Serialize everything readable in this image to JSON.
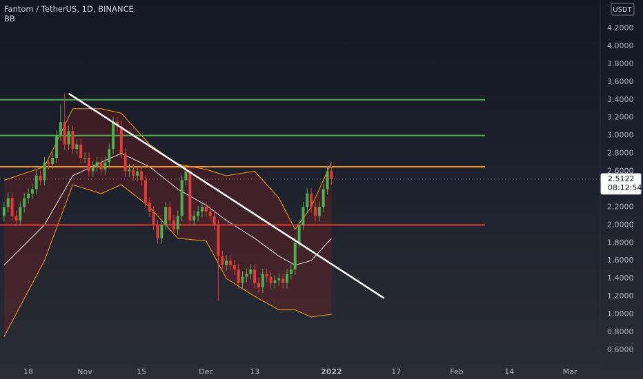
{
  "chart_data": {
    "type": "candlestick",
    "title": "Fantom / TetherUS, 1D, BINANCE",
    "indicator_label": "BB",
    "currency": "USDT",
    "countdown": "08:12:54",
    "up_color": "#4caf50",
    "down_color": "#e53935",
    "x": [
      "2021-10-12",
      "2021-10-13",
      "2021-10-14",
      "2021-10-15",
      "2021-10-16",
      "2021-10-17",
      "2021-10-18",
      "2021-10-19",
      "2021-10-20",
      "2021-10-21",
      "2021-10-22",
      "2021-10-23",
      "2021-10-24",
      "2021-10-25",
      "2021-10-26",
      "2021-10-27",
      "2021-10-28",
      "2021-10-29",
      "2021-10-30",
      "2021-10-31",
      "2021-11-01",
      "2021-11-02",
      "2021-11-03",
      "2021-11-04",
      "2021-11-05",
      "2021-11-06",
      "2021-11-07",
      "2021-11-08",
      "2021-11-09",
      "2021-11-10",
      "2021-11-11",
      "2021-11-12",
      "2021-11-13",
      "2021-11-14",
      "2021-11-15",
      "2021-11-16",
      "2021-11-17",
      "2021-11-18",
      "2021-11-19",
      "2021-11-20",
      "2021-11-21",
      "2021-11-22",
      "2021-11-23",
      "2021-11-24",
      "2021-11-25",
      "2021-11-26",
      "2021-11-27",
      "2021-11-28",
      "2021-11-29",
      "2021-11-30",
      "2021-12-01",
      "2021-12-02",
      "2021-12-03",
      "2021-12-04",
      "2021-12-05",
      "2021-12-06",
      "2021-12-07",
      "2021-12-08",
      "2021-12-09",
      "2021-12-10",
      "2021-12-11",
      "2021-12-12",
      "2021-12-13",
      "2021-12-14",
      "2021-12-15",
      "2021-12-16",
      "2021-12-17",
      "2021-12-18",
      "2021-12-19",
      "2021-12-20",
      "2021-12-21",
      "2021-12-22",
      "2021-12-23",
      "2021-12-24",
      "2021-12-25",
      "2021-12-26",
      "2021-12-27",
      "2021-12-28",
      "2021-12-29",
      "2021-12-30",
      "2021-12-31",
      "2022-01-01"
    ],
    "open": [
      2.1,
      2.2,
      2.3,
      2.1,
      2.05,
      2.2,
      2.3,
      2.35,
      2.4,
      2.55,
      2.5,
      2.7,
      2.68,
      2.75,
      3.0,
      3.15,
      2.9,
      3.05,
      2.85,
      2.9,
      2.75,
      2.75,
      2.6,
      2.65,
      2.7,
      2.62,
      2.7,
      2.85,
      3.15,
      3.1,
      2.8,
      2.6,
      2.62,
      2.55,
      2.6,
      2.5,
      2.25,
      2.15,
      2.0,
      1.85,
      2.0,
      2.2,
      2.05,
      1.95,
      2.1,
      2.5,
      2.6,
      2.05,
      2.1,
      2.15,
      2.2,
      2.15,
      2.1,
      2.0,
      1.65,
      1.55,
      1.6,
      1.55,
      1.5,
      1.35,
      1.42,
      1.45,
      1.5,
      1.35,
      1.3,
      1.45,
      1.42,
      1.35,
      1.38,
      1.4,
      1.35,
      1.45,
      1.5,
      1.8,
      2.0,
      2.2,
      2.35,
      2.2,
      2.1,
      2.2,
      2.4,
      2.6
    ],
    "high": [
      2.26,
      2.36,
      2.36,
      2.16,
      2.26,
      2.36,
      2.41,
      2.46,
      2.61,
      2.61,
      2.76,
      2.76,
      2.81,
      3.06,
      3.35,
      3.47,
      3.11,
      3.11,
      2.96,
      2.96,
      2.81,
      2.81,
      2.71,
      2.76,
      2.76,
      2.76,
      2.91,
      3.21,
      3.21,
      3.16,
      2.86,
      2.68,
      2.68,
      2.66,
      2.66,
      2.56,
      2.31,
      2.21,
      2.06,
      2.06,
      2.26,
      2.26,
      2.11,
      2.16,
      2.56,
      2.66,
      2.66,
      2.16,
      2.21,
      2.26,
      2.26,
      2.21,
      2.16,
      2.06,
      1.71,
      1.66,
      1.66,
      1.61,
      1.56,
      1.48,
      1.51,
      1.56,
      1.56,
      1.41,
      1.51,
      1.51,
      1.48,
      1.44,
      1.46,
      1.46,
      1.51,
      1.56,
      1.86,
      2.06,
      2.26,
      2.41,
      2.41,
      2.26,
      2.26,
      2.46,
      2.66,
      2.66
    ],
    "low": [
      2.04,
      2.14,
      2.04,
      1.99,
      1.99,
      2.14,
      2.24,
      2.29,
      2.34,
      2.44,
      2.44,
      2.62,
      2.62,
      2.69,
      2.94,
      2.84,
      2.84,
      2.79,
      2.79,
      2.69,
      2.69,
      2.54,
      2.54,
      2.59,
      2.56,
      2.56,
      2.64,
      2.79,
      3.04,
      2.74,
      2.54,
      2.54,
      2.49,
      2.49,
      2.44,
      2.19,
      2.09,
      1.94,
      1.79,
      1.79,
      1.94,
      1.99,
      1.89,
      1.89,
      2.04,
      2.44,
      1.99,
      1.99,
      2.04,
      2.09,
      2.09,
      2.04,
      1.94,
      1.15,
      1.49,
      1.49,
      1.49,
      1.44,
      1.29,
      1.29,
      1.36,
      1.39,
      1.29,
      1.24,
      1.24,
      1.36,
      1.29,
      1.29,
      1.32,
      1.29,
      1.29,
      1.39,
      1.44,
      1.74,
      1.94,
      2.14,
      2.14,
      2.04,
      2.04,
      2.14,
      2.34,
      2.45
    ],
    "close": [
      2.2,
      2.3,
      2.1,
      2.05,
      2.2,
      2.3,
      2.35,
      2.4,
      2.55,
      2.5,
      2.7,
      2.68,
      2.75,
      3.0,
      3.15,
      2.9,
      3.05,
      2.85,
      2.9,
      2.75,
      2.75,
      2.6,
      2.65,
      2.7,
      2.62,
      2.7,
      2.85,
      3.15,
      3.1,
      2.8,
      2.6,
      2.62,
      2.55,
      2.6,
      2.5,
      2.25,
      2.15,
      2.0,
      1.85,
      2.0,
      2.2,
      2.05,
      1.95,
      2.1,
      2.5,
      2.6,
      2.05,
      2.1,
      2.15,
      2.2,
      2.15,
      2.1,
      2.0,
      1.65,
      1.55,
      1.6,
      1.55,
      1.5,
      1.35,
      1.42,
      1.45,
      1.5,
      1.35,
      1.3,
      1.45,
      1.42,
      1.35,
      1.38,
      1.4,
      1.35,
      1.45,
      1.5,
      1.8,
      2.0,
      2.2,
      2.35,
      2.2,
      2.1,
      2.2,
      2.4,
      2.6,
      2.5122
    ],
    "bands": {
      "x": [
        "2021-10-12",
        "2021-10-22",
        "2021-10-29",
        "2021-11-05",
        "2021-11-10",
        "2021-11-17",
        "2021-11-24",
        "2021-12-01",
        "2021-12-06",
        "2021-12-13",
        "2021-12-19",
        "2021-12-23",
        "2021-12-27",
        "2022-01-01"
      ],
      "upper": [
        2.5,
        2.65,
        3.3,
        3.3,
        3.25,
        2.9,
        2.68,
        2.62,
        2.55,
        2.6,
        2.3,
        1.95,
        2.2,
        2.7
      ],
      "basis": [
        1.55,
        2.0,
        2.55,
        2.7,
        2.8,
        2.65,
        2.4,
        2.22,
        2.05,
        1.85,
        1.65,
        1.55,
        1.6,
        1.85
      ],
      "lower": [
        0.75,
        1.6,
        2.45,
        2.35,
        2.45,
        2.2,
        1.85,
        1.82,
        1.4,
        1.2,
        1.05,
        1.05,
        0.97,
        1.0
      ],
      "band_color": "#f59e0b",
      "basis_color": "#e8e8e8",
      "fill_color": "#b71c1c"
    },
    "levels": [
      {
        "value": 3.4,
        "color": "#4caf50",
        "end": "2022-02-08"
      },
      {
        "value": 3.0,
        "color": "#4caf50",
        "end": "2022-02-08"
      },
      {
        "value": 2.65,
        "color": "#ff9800",
        "end": "2022-02-08"
      },
      {
        "value": 2.0,
        "color": "#e53935",
        "end": "2022-02-08"
      }
    ],
    "trendline": {
      "x": [
        "2021-10-28",
        "2022-01-14"
      ],
      "values": [
        3.47,
        1.18
      ],
      "color": "#ffffff"
    },
    "xlim": [
      "2021-10-11",
      "2022-03-09"
    ],
    "xticks": [
      {
        "value": "2021-10-18",
        "label": "18"
      },
      {
        "value": "2021-11-01",
        "label": "Nov"
      },
      {
        "value": "2021-11-15",
        "label": "15"
      },
      {
        "value": "2021-12-01",
        "label": "Dec"
      },
      {
        "value": "2021-12-13",
        "label": "13"
      },
      {
        "value": "2022-01-01",
        "label": "2022"
      },
      {
        "value": "2022-01-17",
        "label": "17"
      },
      {
        "value": "2022-02-01",
        "label": "Feb"
      },
      {
        "value": "2022-02-14",
        "label": "14"
      },
      {
        "value": "2022-03-01",
        "label": "Mar"
      }
    ],
    "ylim": [
      0.43,
      4.516
    ],
    "yticks": [
      {
        "value": 0.6,
        "label": "0.6000"
      },
      {
        "value": 0.8,
        "label": "0.8000"
      },
      {
        "value": 1.0,
        "label": "1.0000"
      },
      {
        "value": 1.2,
        "label": "1.2000"
      },
      {
        "value": 1.4,
        "label": "1.4000"
      },
      {
        "value": 1.6,
        "label": "1.6000"
      },
      {
        "value": 1.8,
        "label": "1.8000"
      },
      {
        "value": 2.0,
        "label": "2.0000"
      },
      {
        "value": 2.2,
        "label": "2.2000"
      },
      {
        "value": 2.4,
        "label": "2.4000"
      },
      {
        "value": 2.6,
        "label": "2.6000"
      },
      {
        "value": 2.8,
        "label": "2.8000"
      },
      {
        "value": 3.0,
        "label": "3.0000"
      },
      {
        "value": 3.2,
        "label": "3.2000"
      },
      {
        "value": 3.4,
        "label": "3.4000"
      },
      {
        "value": 3.6,
        "label": "3.6000"
      },
      {
        "value": 3.8,
        "label": "3.8000"
      },
      {
        "value": 4.0,
        "label": "4.0000"
      },
      {
        "value": 4.2,
        "label": "4.2000"
      }
    ],
    "grid": false
  }
}
